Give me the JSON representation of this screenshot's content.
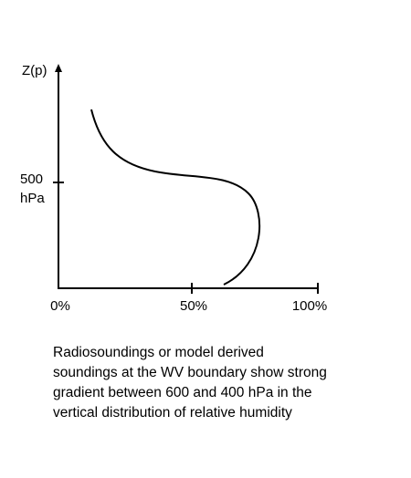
{
  "diagram": {
    "y_axis_label": "Z(p)",
    "y_tick_label_line1": "500",
    "y_tick_label_line2": "hPa",
    "x_tick_labels": [
      "0%",
      "50%",
      "100%"
    ]
  },
  "caption": {
    "lines": [
      "Radiosoundings or model derived",
      "soundings at the WV boundary show strong",
      "gradient between 600 and 400 hPa in the",
      "vertical distribution of relative humidity"
    ]
  }
}
